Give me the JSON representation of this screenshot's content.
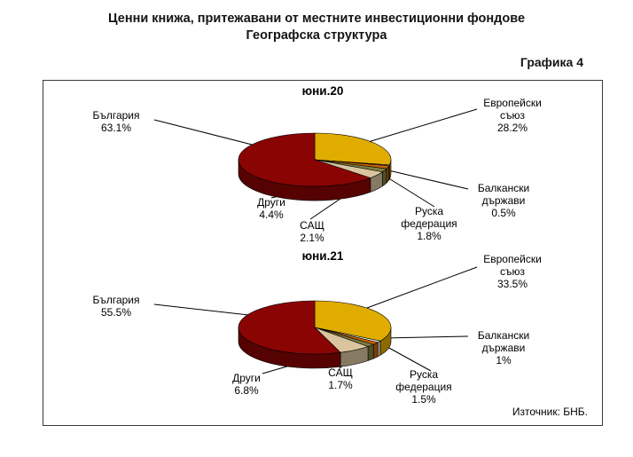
{
  "page": {
    "title_line1": "Ценни книжа, притежавани от местните инвестиционни фондове",
    "title_line2": "Географска структура",
    "graph_label": "Графика 4",
    "source": "Източник: БНБ."
  },
  "chart_data": [
    {
      "type": "pie",
      "title": "юни.20",
      "slices": [
        {
          "label": "Европейски съюз",
          "value": 28.2,
          "pct_label": "28.2%",
          "color": "#E0AC00"
        },
        {
          "label": "Балкански държави",
          "value": 0.5,
          "pct_label": "0.5%",
          "color": "#F2EEDC"
        },
        {
          "label": "Руска федерация",
          "value": 1.8,
          "pct_label": "1.8%",
          "color": "#C86400"
        },
        {
          "label": "САЩ",
          "value": 2.1,
          "pct_label": "2.1%",
          "color": "#7D7D42"
        },
        {
          "label": "Други",
          "value": 4.4,
          "pct_label": "4.4%",
          "color": "#D9C49E"
        },
        {
          "label": "България",
          "value": 63.1,
          "pct_label": "63.1%",
          "color": "#8B0404"
        }
      ]
    },
    {
      "type": "pie",
      "title": "юни.21",
      "slices": [
        {
          "label": "Европейски съюз",
          "value": 33.5,
          "pct_label": "33.5%",
          "color": "#E0AC00"
        },
        {
          "label": "Балкански държави",
          "value": 1.0,
          "pct_label": "1%",
          "color": "#F2EEDC"
        },
        {
          "label": "Руска федерация",
          "value": 1.5,
          "pct_label": "1.5%",
          "color": "#C86400"
        },
        {
          "label": "САЩ",
          "value": 1.7,
          "pct_label": "1.7%",
          "color": "#7D7D42"
        },
        {
          "label": "Други",
          "value": 6.8,
          "pct_label": "6.8%",
          "color": "#D9C49E"
        },
        {
          "label": "България",
          "value": 55.5,
          "pct_label": "55.5%",
          "color": "#8B0404"
        }
      ]
    }
  ]
}
